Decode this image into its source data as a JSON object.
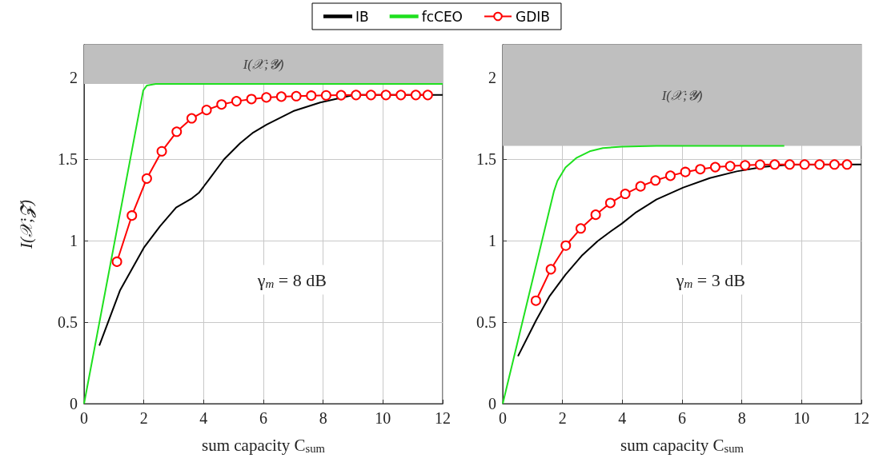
{
  "chart_data": [
    {
      "type": "line",
      "xlabel": "sum capacity C$_{sum}$",
      "ylabel": "I(𝒳;𝓩)",
      "xlim": [
        0,
        12
      ],
      "xticks": [
        0,
        2,
        4,
        6,
        8,
        10,
        12
      ],
      "ylim": [
        0,
        2.2
      ],
      "yticks": [
        0,
        0.5,
        1,
        1.5,
        2
      ],
      "grid": true,
      "legend": "top",
      "line_style": "solid",
      "annotations": [
        "γ$_{m}$ = 8 dB"
      ],
      "bands": [
        {
          "axis": "y",
          "from": 1.96,
          "to": 2.2,
          "label": "I(𝒳;𝓨)",
          "color": "#bfbfbf"
        }
      ],
      "series": [
        {
          "name": "IB",
          "color": "#000000",
          "marker": "none",
          "x": [
            0.51,
            1.2,
            2.0,
            2.54,
            3.08,
            3.61,
            3.84,
            4.15,
            4.68,
            5.22,
            5.66,
            6.11,
            7.0,
            7.9,
            8.79,
            9.05,
            12
          ],
          "values": [
            0.356,
            0.693,
            0.956,
            1.087,
            1.202,
            1.259,
            1.292,
            1.366,
            1.497,
            1.596,
            1.662,
            1.711,
            1.793,
            1.846,
            1.883,
            1.892,
            1.892
          ]
        },
        {
          "name": "fcCEO",
          "color": "#1fe01f",
          "marker": "none",
          "x": [
            0,
            1.98,
            2.1,
            2.4,
            12
          ],
          "values": [
            0,
            1.92,
            1.95,
            1.96,
            1.96
          ]
        },
        {
          "name": "GDIB",
          "color": "#ff0000",
          "marker": "circle",
          "x": [
            1.1,
            1.6,
            2.1,
            2.6,
            3.1,
            3.6,
            4.1,
            4.6,
            5.1,
            5.6,
            6.1,
            6.6,
            7.1,
            7.6,
            8.1,
            8.6,
            9.1,
            9.6,
            10.1,
            10.6,
            11.1,
            11.5
          ],
          "values": [
            0.87,
            1.153,
            1.38,
            1.547,
            1.667,
            1.749,
            1.8,
            1.834,
            1.854,
            1.867,
            1.877,
            1.882,
            1.885,
            1.888,
            1.89,
            1.891,
            1.892,
            1.892,
            1.892,
            1.892,
            1.892,
            1.892
          ]
        }
      ]
    },
    {
      "type": "line",
      "xlabel": "sum capacity C$_{sum}$",
      "xlim": [
        0,
        12
      ],
      "xticks": [
        0,
        2,
        4,
        6,
        8,
        10,
        12
      ],
      "ylim": [
        0,
        2.2
      ],
      "yticks": [
        0,
        0.5,
        1,
        1.5,
        2
      ],
      "grid": true,
      "line_style": "solid",
      "annotations": [
        "γ$_{m}$ = 3 dB"
      ],
      "bands": [
        {
          "axis": "y",
          "from": 1.58,
          "to": 2.2,
          "label": "I(𝒳;𝓨)",
          "color": "#bfbfbf"
        }
      ],
      "series": [
        {
          "color": "#000000",
          "marker": "none",
          "x": [
            0.51,
            1.12,
            1.57,
            2.1,
            2.64,
            3.18,
            3.62,
            3.98,
            4.43,
            5.14,
            6.04,
            6.93,
            7.83,
            8.72,
            9.62,
            12
          ],
          "values": [
            0.291,
            0.512,
            0.66,
            0.791,
            0.906,
            0.997,
            1.057,
            1.103,
            1.169,
            1.251,
            1.325,
            1.383,
            1.424,
            1.452,
            1.465,
            1.466
          ]
        },
        {
          "color": "#1fe01f",
          "marker": "none",
          "x": [
            0,
            1.71,
            1.83,
            2.1,
            2.46,
            2.91,
            3.35,
            3.98,
            5.14,
            9.42
          ],
          "values": [
            0,
            1.3,
            1.366,
            1.448,
            1.506,
            1.547,
            1.567,
            1.575,
            1.58,
            1.58
          ]
        },
        {
          "color": "#ff0000",
          "marker": "circle",
          "x": [
            1.11,
            1.61,
            2.11,
            2.61,
            3.11,
            3.6,
            4.1,
            4.61,
            5.11,
            5.61,
            6.11,
            6.61,
            7.11,
            7.61,
            8.11,
            8.61,
            9.1,
            9.6,
            10.1,
            10.6,
            11.1,
            11.52
          ],
          "values": [
            0.631,
            0.824,
            0.969,
            1.074,
            1.158,
            1.23,
            1.286,
            1.332,
            1.368,
            1.397,
            1.42,
            1.437,
            1.45,
            1.456,
            1.461,
            1.465,
            1.466,
            1.466,
            1.466,
            1.466,
            1.466,
            1.466
          ]
        }
      ]
    }
  ]
}
